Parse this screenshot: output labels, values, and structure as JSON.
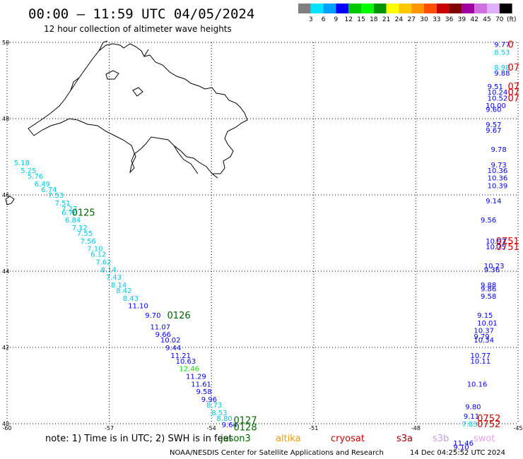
{
  "title": "00:00 – 11:59 UTC 04/05/2024",
  "subtitle": "12 hour collection of altimeter wave heights",
  "colorbar": {
    "unit_label": "(ft)",
    "ticks": [
      "3",
      "6",
      "9",
      "12",
      "15",
      "18",
      "21",
      "24",
      "27",
      "30",
      "33",
      "36",
      "39",
      "42",
      "45",
      "70"
    ],
    "colors": [
      "#808080",
      "#00e5ff",
      "#00a0ff",
      "#0000ff",
      "#00c800",
      "#00ff00",
      "#009600",
      "#ffff00",
      "#ffc800",
      "#ff9600",
      "#ff5000",
      "#c80000",
      "#800000",
      "#a000a0",
      "#d070e0",
      "#e0b0ff",
      "#000000"
    ]
  },
  "footer": {
    "note": "note:  1) Time is in UTC; 2) SWH is in feet",
    "satellites": [
      {
        "name": "jason3",
        "color": "#006400"
      },
      {
        "name": "altika",
        "color": "#ff9600"
      },
      {
        "name": "cryosat",
        "color": "#d00000"
      },
      {
        "name": "s3a",
        "color": "#a00000"
      },
      {
        "name": "s3b",
        "color": "#c0a0e0"
      },
      {
        "name": "swot",
        "color": "#f0a0f0"
      }
    ],
    "credit": "NOAA/NESDIS Center for Satellite Applications and Research",
    "timestamp": "14 Dec 04:25:52 UTC 2024"
  },
  "chart_data": {
    "type": "scatter",
    "x_ticks": [
      "-60",
      "-57",
      "-54",
      "-51",
      "-48",
      "-45"
    ],
    "y_ticks": [
      "50",
      "48",
      "46",
      "44",
      "42",
      "40"
    ],
    "xlim": [
      -60,
      -45
    ],
    "ylim": [
      40,
      50
    ],
    "grid": "dotted",
    "points": [
      {
        "x": -59.8,
        "y": 46.85,
        "label": "5.18",
        "color": "#00c8e8"
      },
      {
        "x": -59.6,
        "y": 46.65,
        "label": "5.25",
        "color": "#00c8e8"
      },
      {
        "x": -59.4,
        "y": 46.5,
        "label": "5.76",
        "color": "#00c8e8"
      },
      {
        "x": -59.2,
        "y": 46.3,
        "label": "6.49",
        "color": "#00c8e8"
      },
      {
        "x": -59.0,
        "y": 46.15,
        "label": "6.74",
        "color": "#00c8e8"
      },
      {
        "x": -58.8,
        "y": 46.0,
        "label": "7.53",
        "color": "#00c8e8"
      },
      {
        "x": -58.6,
        "y": 45.8,
        "label": "7.51",
        "color": "#00c8e8"
      },
      {
        "x": -58.4,
        "y": 45.65,
        "label": "7.27",
        "color": "#00c8e8"
      },
      {
        "x": -58.4,
        "y": 45.55,
        "label": "6.76",
        "color": "#00c8e8"
      },
      {
        "x": -58.3,
        "y": 45.35,
        "label": "6.84",
        "color": "#00c8e8"
      },
      {
        "x": -58.1,
        "y": 45.15,
        "label": "7.12",
        "color": "#00c8e8"
      },
      {
        "x": -57.95,
        "y": 45.0,
        "label": "7.55",
        "color": "#00c8e8"
      },
      {
        "x": -57.85,
        "y": 44.8,
        "label": "7.56",
        "color": "#00c8e8"
      },
      {
        "x": -57.65,
        "y": 44.6,
        "label": "7.10",
        "color": "#00c8e8"
      },
      {
        "x": -57.55,
        "y": 44.45,
        "label": "6.12",
        "color": "#00c8e8"
      },
      {
        "x": -57.4,
        "y": 44.25,
        "label": "7.62",
        "color": "#00c8e8"
      },
      {
        "x": -57.25,
        "y": 44.05,
        "label": "8.14",
        "color": "#00c8e8"
      },
      {
        "x": -57.1,
        "y": 43.85,
        "label": "7.43",
        "color": "#00c8e8"
      },
      {
        "x": -56.95,
        "y": 43.65,
        "label": "8.14",
        "color": "#00c8e8"
      },
      {
        "x": -56.8,
        "y": 43.5,
        "label": "8.42",
        "color": "#00c8e8"
      },
      {
        "x": -56.6,
        "y": 43.3,
        "label": "8.43",
        "color": "#00c8e8"
      },
      {
        "x": -56.45,
        "y": 43.1,
        "label": "11.10",
        "color": "#0000ff"
      },
      {
        "x": -55.95,
        "y": 42.85,
        "label": "9.70",
        "color": "#0000ff"
      },
      {
        "x": -55.8,
        "y": 42.55,
        "label": "11.07",
        "color": "#0000ff"
      },
      {
        "x": -55.65,
        "y": 42.35,
        "label": "9.66",
        "color": "#0000ff"
      },
      {
        "x": -55.5,
        "y": 42.2,
        "label": "10.02",
        "color": "#0000ff"
      },
      {
        "x": -55.35,
        "y": 42.0,
        "label": "9.44",
        "color": "#0000ff"
      },
      {
        "x": -55.2,
        "y": 41.8,
        "label": "11.21",
        "color": "#0000ff"
      },
      {
        "x": -55.05,
        "y": 41.65,
        "label": "10.63",
        "color": "#0000ff"
      },
      {
        "x": -54.95,
        "y": 41.45,
        "label": "12.46",
        "color": "#00e000"
      },
      {
        "x": -54.75,
        "y": 41.25,
        "label": "11.29",
        "color": "#0000ff"
      },
      {
        "x": -54.6,
        "y": 41.05,
        "label": "11.61",
        "color": "#0000ff"
      },
      {
        "x": -54.45,
        "y": 40.85,
        "label": "9.58",
        "color": "#0000ff"
      },
      {
        "x": -54.3,
        "y": 40.65,
        "label": "9.96",
        "color": "#0000ff"
      },
      {
        "x": -54.15,
        "y": 40.5,
        "label": "8.73",
        "color": "#00c8e8"
      },
      {
        "x": -54.0,
        "y": 40.3,
        "label": "8.53",
        "color": "#00c8e8"
      },
      {
        "x": -53.85,
        "y": 40.15,
        "label": "8.80",
        "color": "#00c8e8"
      },
      {
        "x": -53.7,
        "y": 39.98,
        "label": "9.64",
        "color": "#0000ff"
      },
      {
        "x": -45.7,
        "y": 49.95,
        "label": "9.77",
        "color": "#0000ff"
      },
      {
        "x": -45.7,
        "y": 49.75,
        "label": "8.53",
        "color": "#00c8e8"
      },
      {
        "x": -45.7,
        "y": 49.35,
        "label": "8.98",
        "color": "#00c8e8"
      },
      {
        "x": -45.7,
        "y": 49.2,
        "label": "9.88",
        "color": "#0000ff"
      },
      {
        "x": -45.9,
        "y": 48.85,
        "label": "9.51",
        "color": "#0000ff"
      },
      {
        "x": -45.9,
        "y": 48.7,
        "label": "10.24",
        "color": "#0000ff"
      },
      {
        "x": -45.9,
        "y": 48.55,
        "label": "10.52",
        "color": "#0000ff"
      },
      {
        "x": -45.95,
        "y": 48.35,
        "label": "10.00",
        "color": "#0000ff"
      },
      {
        "x": -45.95,
        "y": 48.25,
        "label": "9.60",
        "color": "#0000ff"
      },
      {
        "x": -45.95,
        "y": 47.85,
        "label": "9.57",
        "color": "#0000ff"
      },
      {
        "x": -45.95,
        "y": 47.7,
        "label": "9.67",
        "color": "#0000ff"
      },
      {
        "x": -45.8,
        "y": 47.2,
        "label": "9.78",
        "color": "#0000ff"
      },
      {
        "x": -45.8,
        "y": 46.8,
        "label": "9.73",
        "color": "#0000ff"
      },
      {
        "x": -45.9,
        "y": 46.65,
        "label": "10.36",
        "color": "#0000ff"
      },
      {
        "x": -45.9,
        "y": 46.45,
        "label": "10.36",
        "color": "#0000ff"
      },
      {
        "x": -45.9,
        "y": 46.25,
        "label": "10.39",
        "color": "#0000ff"
      },
      {
        "x": -45.95,
        "y": 45.85,
        "label": "9.14",
        "color": "#0000ff"
      },
      {
        "x": -46.1,
        "y": 45.35,
        "label": "9.56",
        "color": "#0000ff"
      },
      {
        "x": -45.95,
        "y": 44.8,
        "label": "10.97",
        "color": "#0000ff"
      },
      {
        "x": -45.95,
        "y": 44.65,
        "label": "10.75",
        "color": "#0000ff"
      },
      {
        "x": -46.0,
        "y": 44.15,
        "label": "10.23",
        "color": "#0000ff"
      },
      {
        "x": -46.0,
        "y": 44.05,
        "label": "9.36",
        "color": "#0000ff"
      },
      {
        "x": -46.1,
        "y": 43.65,
        "label": "9.88",
        "color": "#0000ff"
      },
      {
        "x": -46.1,
        "y": 43.55,
        "label": "9.86",
        "color": "#0000ff"
      },
      {
        "x": -46.1,
        "y": 43.35,
        "label": "9.58",
        "color": "#0000ff"
      },
      {
        "x": -46.2,
        "y": 42.85,
        "label": "9.15",
        "color": "#0000ff"
      },
      {
        "x": -46.2,
        "y": 42.65,
        "label": "10.01",
        "color": "#0000ff"
      },
      {
        "x": -46.3,
        "y": 42.45,
        "label": "10.37",
        "color": "#0000ff"
      },
      {
        "x": -46.3,
        "y": 42.3,
        "label": "9.79",
        "color": "#0000ff"
      },
      {
        "x": -46.3,
        "y": 42.2,
        "label": "10.34",
        "color": "#0000ff"
      },
      {
        "x": -46.4,
        "y": 41.8,
        "label": "10.77",
        "color": "#0000ff"
      },
      {
        "x": -46.4,
        "y": 41.65,
        "label": "10.11",
        "color": "#0000ff"
      },
      {
        "x": -46.5,
        "y": 41.05,
        "label": "10.16",
        "color": "#0000ff"
      },
      {
        "x": -46.55,
        "y": 40.45,
        "label": "9.80",
        "color": "#0000ff"
      },
      {
        "x": -46.6,
        "y": 40.2,
        "label": "9.11",
        "color": "#0000ff"
      },
      {
        "x": -46.65,
        "y": 40.0,
        "label": "7.83",
        "color": "#00c8e8"
      },
      {
        "x": -46.9,
        "y": 39.5,
        "label": "11.46",
        "color": "#0000ff"
      },
      {
        "x": -46.9,
        "y": 39.4,
        "label": "9.10",
        "color": "#0000ff"
      }
    ],
    "pass_labels": [
      {
        "x": -58.1,
        "y": 45.55,
        "text": "0125",
        "color": "#006400"
      },
      {
        "x": -55.3,
        "y": 42.85,
        "text": "0126",
        "color": "#006400"
      },
      {
        "x": -53.35,
        "y": 40.1,
        "text": "0127",
        "color": "#006400"
      },
      {
        "x": -53.35,
        "y": 39.92,
        "text": "0128",
        "color": "#006400"
      },
      {
        "x": -45.3,
        "y": 49.35,
        "text": "07",
        "color": "#d00000"
      },
      {
        "x": -45.3,
        "y": 48.85,
        "text": "07",
        "color": "#d00000"
      },
      {
        "x": -45.3,
        "y": 48.7,
        "text": "07",
        "color": "#d00000"
      },
      {
        "x": -45.3,
        "y": 48.55,
        "text": "07",
        "color": "#d00000"
      },
      {
        "x": -45.3,
        "y": 49.95,
        "text": "0",
        "color": "#d00000"
      },
      {
        "x": -45.65,
        "y": 44.8,
        "text": "0751",
        "color": "#d00000"
      },
      {
        "x": -45.65,
        "y": 44.65,
        "text": "0751",
        "color": "#d00000"
      },
      {
        "x": -46.2,
        "y": 40.15,
        "text": "0752",
        "color": "#d00000"
      },
      {
        "x": -46.2,
        "y": 40.0,
        "text": "0752",
        "color": "#d00000"
      }
    ]
  }
}
